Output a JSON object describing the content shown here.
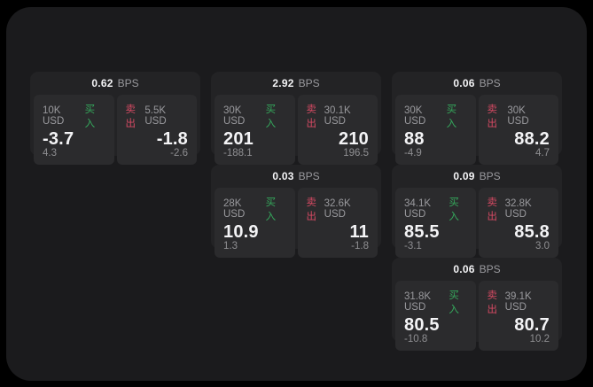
{
  "colors": {
    "bg": "#000000",
    "panel_bg": "#1b1b1d",
    "card_bg": "#232325",
    "tile_bg": "#2b2b2d",
    "muted": "#9a9a9e",
    "muted_dim": "#8f8f92",
    "white": "#f4f4f6",
    "buy_green": "#35a85c",
    "sell_red": "#d64a63"
  },
  "labels": {
    "bps_unit": "BPS",
    "buy": "买入",
    "sell": "卖出"
  },
  "cards": [
    {
      "row": 1,
      "col": 1,
      "bps": "0.62",
      "buy": {
        "size": "10K USD",
        "price": "-3.7",
        "delta": "4.3"
      },
      "sell": {
        "size": "5.5K USD",
        "price": "-1.8",
        "delta": "-2.6"
      }
    },
    {
      "row": 1,
      "col": 2,
      "bps": "2.92",
      "buy": {
        "size": "30K USD",
        "price": "201",
        "delta": "-188.1"
      },
      "sell": {
        "size": "30.1K USD",
        "price": "210",
        "delta": "196.5"
      }
    },
    {
      "row": 1,
      "col": 3,
      "bps": "0.06",
      "buy": {
        "size": "30K USD",
        "price": "88",
        "delta": "-4.9"
      },
      "sell": {
        "size": "30K USD",
        "price": "88.2",
        "delta": "4.7"
      }
    },
    {
      "row": 2,
      "col": 2,
      "bps": "0.03",
      "buy": {
        "size": "28K USD",
        "price": "10.9",
        "delta": "1.3"
      },
      "sell": {
        "size": "32.6K USD",
        "price": "11",
        "delta": "-1.8"
      }
    },
    {
      "row": 2,
      "col": 3,
      "bps": "0.09",
      "buy": {
        "size": "34.1K USD",
        "price": "85.5",
        "delta": "-3.1"
      },
      "sell": {
        "size": "32.8K USD",
        "price": "85.8",
        "delta": "3.0"
      }
    },
    {
      "row": 3,
      "col": 3,
      "bps": "0.06",
      "buy": {
        "size": "31.8K USD",
        "price": "80.5",
        "delta": "-10.8"
      },
      "sell": {
        "size": "39.1K USD",
        "price": "80.7",
        "delta": "10.2"
      }
    }
  ]
}
